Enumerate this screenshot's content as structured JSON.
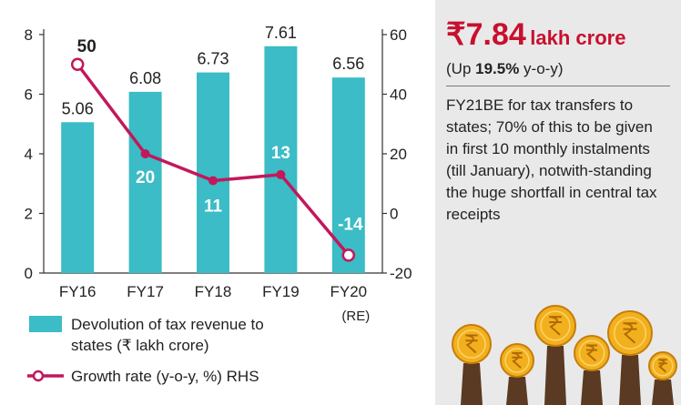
{
  "chart_data": {
    "type": "bar+line",
    "categories": [
      "FY16",
      "FY17",
      "FY18",
      "FY19",
      "FY20"
    ],
    "category_suffix": {
      "index": 4,
      "text": "(RE)"
    },
    "series": [
      {
        "name": "Devolution of tax revenue to states (₹ lakh crore)",
        "type": "bar",
        "axis": "left",
        "values": [
          5.06,
          6.08,
          6.73,
          7.61,
          6.56
        ],
        "labels": [
          "5.06",
          "6.08",
          "6.73",
          "7.61",
          "6.56"
        ]
      },
      {
        "name": "Growth rate (y-o-y, %) RHS",
        "type": "line",
        "axis": "right",
        "values": [
          50,
          20,
          11,
          13,
          -14
        ],
        "labels": [
          "50",
          "20",
          "11",
          "13",
          "-14"
        ]
      }
    ],
    "left_axis": {
      "ylim": [
        0,
        8
      ],
      "ticks": [
        "0",
        "2",
        "4",
        "6",
        "8"
      ]
    },
    "right_axis": {
      "ylim": [
        -20,
        60
      ],
      "ticks": [
        "-20",
        "0",
        "20",
        "40",
        "60"
      ]
    },
    "legend": {
      "bar_line1": "Devolution of tax revenue to",
      "bar_line2": "states (₹ lakh crore)",
      "line": "Growth rate (y-o-y, %) RHS"
    },
    "colors": {
      "bar": "#3bbcc6",
      "line": "#c2185b",
      "text": "#222222"
    }
  },
  "highlight": {
    "amount": "₹7.84",
    "unit": "lakh crore",
    "change_prefix": "(Up ",
    "change_value": "19.5%",
    "change_suffix": " y-o-y)",
    "description": "FY21BE for tax transfers to states; 70% of this to be given in first 10 monthly instalments (till January), notwith-standing the huge shortfall in central tax receipts",
    "accent_color": "#c8102e"
  }
}
